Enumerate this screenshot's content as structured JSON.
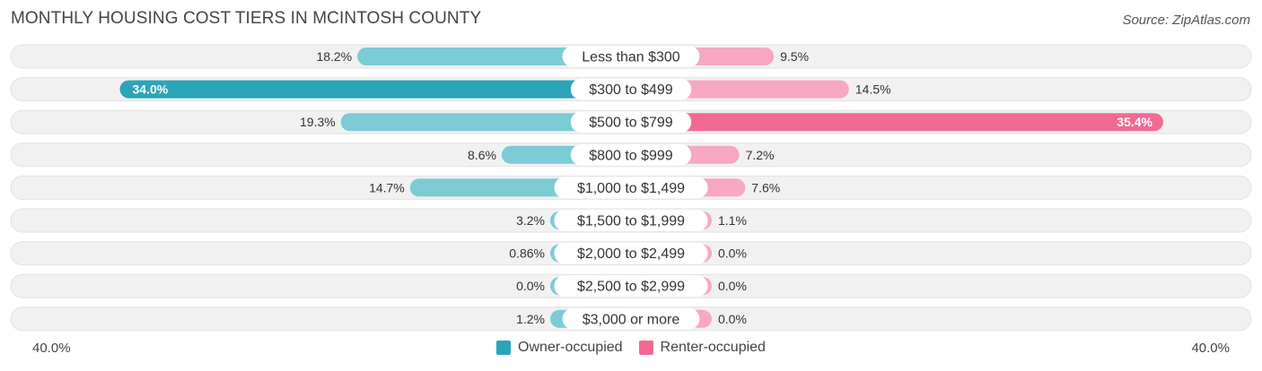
{
  "header": {
    "title": "MONTHLY HOUSING COST TIERS IN MCINTOSH COUNTY",
    "source": "Source: ZipAtlas.com"
  },
  "axis": {
    "left_label": "40.0%",
    "right_label": "40.0%"
  },
  "legend": {
    "owner_label": "Owner-occupied",
    "renter_label": "Renter-occupied"
  },
  "colors": {
    "owner": "#2ba5b8",
    "owner_light": "#7ccbd6",
    "renter": "#f06a94",
    "renter_light": "#f7a8c3",
    "track": "#f1f1f1"
  },
  "chart_data": {
    "type": "bar",
    "orientation": "diverging-horizontal",
    "xlim": [
      -40,
      40
    ],
    "categories": [
      "Less than $300",
      "$300 to $499",
      "$500 to $799",
      "$800 to $999",
      "$1,000 to $1,499",
      "$1,500 to $1,999",
      "$2,000 to $2,499",
      "$2,500 to $2,999",
      "$3,000 or more"
    ],
    "series": [
      {
        "name": "Owner-occupied",
        "values": [
          18.2,
          34.0,
          19.3,
          8.6,
          14.7,
          3.2,
          0.86,
          0.0,
          1.2
        ],
        "labels": [
          "18.2%",
          "34.0%",
          "19.3%",
          "8.6%",
          "14.7%",
          "3.2%",
          "0.86%",
          "0.0%",
          "1.2%"
        ]
      },
      {
        "name": "Renter-occupied",
        "values": [
          9.5,
          14.5,
          35.4,
          7.2,
          7.6,
          1.1,
          0.0,
          0.0,
          0.0
        ],
        "labels": [
          "9.5%",
          "14.5%",
          "35.4%",
          "7.2%",
          "7.6%",
          "1.1%",
          "0.0%",
          "0.0%",
          "0.0%"
        ]
      }
    ]
  }
}
